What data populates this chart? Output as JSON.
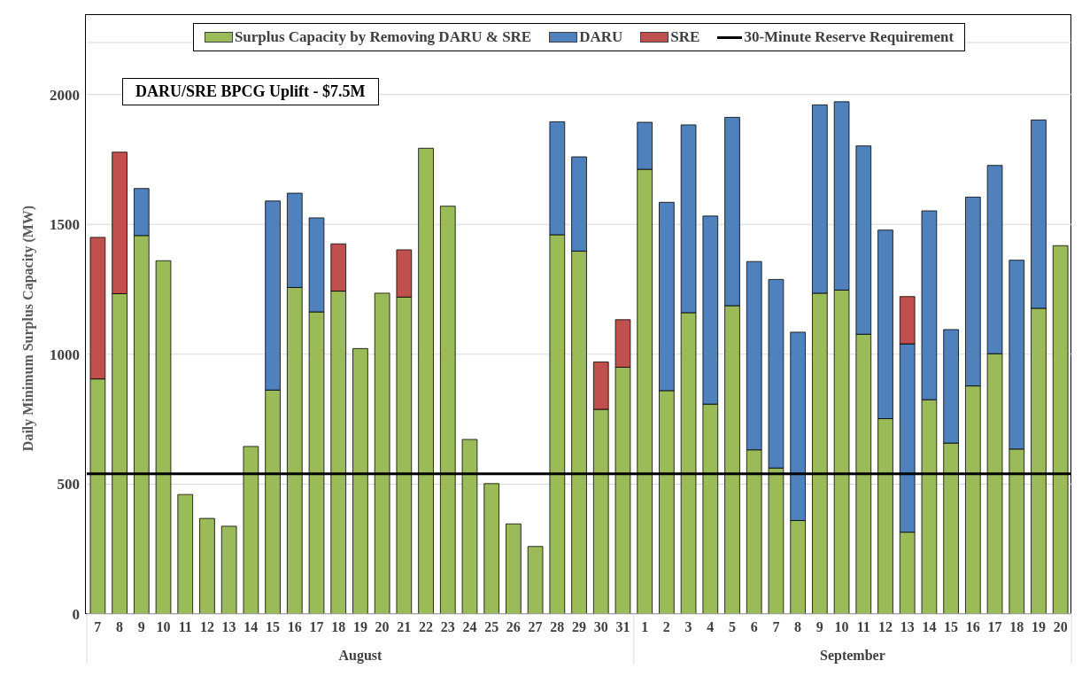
{
  "chart_data": {
    "type": "bar",
    "stacked": true,
    "ylabel": "Daily Minimum Surplus Capacity (MW)",
    "categories": [
      "7",
      "8",
      "9",
      "10",
      "11",
      "12",
      "13",
      "14",
      "15",
      "16",
      "17",
      "18",
      "19",
      "20",
      "21",
      "22",
      "23",
      "24",
      "25",
      "26",
      "27",
      "28",
      "29",
      "30",
      "31",
      "1",
      "2",
      "3",
      "4",
      "5",
      "6",
      "7",
      "8",
      "9",
      "10",
      "11",
      "12",
      "13",
      "14",
      "15",
      "16",
      "17",
      "18",
      "19",
      "20"
    ],
    "series": [
      {
        "name": "Surplus Capacity by Removing DARU & SRE",
        "color": "#9bbb59",
        "values": [
          905,
          1233,
          1457,
          1360,
          460,
          368,
          338,
          645,
          862,
          1257,
          1163,
          1243,
          1022,
          1235,
          1220,
          1793,
          1570,
          672,
          502,
          347,
          260,
          1460,
          1397,
          788,
          950,
          1712,
          860,
          1160,
          808,
          1187,
          632,
          562,
          360,
          1235,
          1247,
          1077,
          752,
          315,
          825,
          658,
          878,
          1002,
          635,
          1177,
          1418
        ]
      },
      {
        "name": "DARU",
        "color": "#4f81bd",
        "values": [
          null,
          null,
          181,
          null,
          null,
          null,
          null,
          null,
          728,
          363,
          362,
          null,
          null,
          null,
          null,
          null,
          null,
          null,
          null,
          null,
          null,
          435,
          363,
          null,
          null,
          181,
          725,
          723,
          724,
          725,
          725,
          726,
          725,
          725,
          725,
          725,
          726,
          725,
          727,
          437,
          727,
          725,
          727,
          725,
          null
        ]
      },
      {
        "name": "SRE",
        "color": "#c0504d",
        "values": [
          545,
          545,
          null,
          null,
          null,
          null,
          null,
          null,
          null,
          null,
          null,
          182,
          null,
          null,
          182,
          null,
          null,
          null,
          null,
          null,
          null,
          null,
          null,
          182,
          183,
          null,
          null,
          null,
          null,
          null,
          null,
          null,
          null,
          null,
          null,
          null,
          null,
          182,
          null,
          null,
          null,
          null,
          null,
          null,
          null
        ]
      }
    ],
    "ylim": [
      0,
      2200
    ],
    "yticks": [
      0,
      500,
      1000,
      1500,
      2000
    ],
    "grid": "y",
    "legend": "top",
    "ref_lines": [
      {
        "axis": "y",
        "value": 540,
        "label": "30-Minute Reserve Requirement",
        "color": "#000000"
      }
    ],
    "annotations": [
      "DARU/SRE BPCG Uplift - $7.5M",
      "August",
      "September"
    ]
  }
}
